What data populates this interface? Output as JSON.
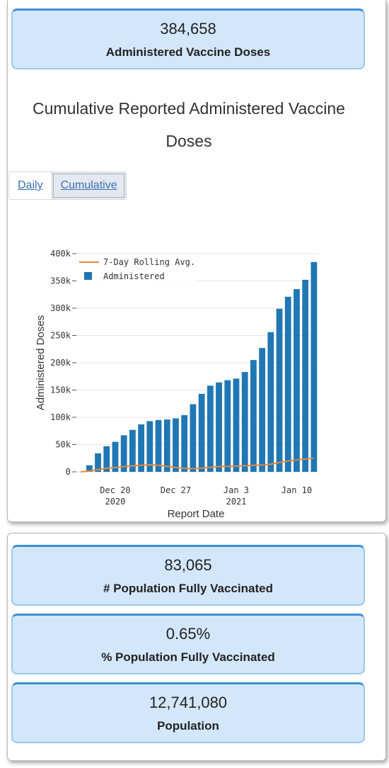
{
  "stats_top": {
    "doses_value": "384,658",
    "doses_label": "Administered Vaccine Doses"
  },
  "chart_title": "Cumulative Reported Administered Vaccine Doses",
  "tabs": [
    {
      "label": "Daily",
      "active": false
    },
    {
      "label": "Cumulative",
      "active": true
    }
  ],
  "stats_bottom": [
    {
      "value": "83,065",
      "label": "# Population Fully Vaccinated"
    },
    {
      "value": "0.65%",
      "label": "% Population Fully Vaccinated"
    },
    {
      "value": "12,741,080",
      "label": "Population"
    }
  ],
  "colors": {
    "bar": "#1f77b4",
    "line": "#e8873a",
    "stat_bg": "#d3e7fa",
    "stat_border": "#3b8fd6"
  },
  "chart_data": {
    "type": "bar",
    "xlabel": "Report Date",
    "ylabel": "Administered Doses",
    "ylim": [
      0,
      400000
    ],
    "yticks": [
      0,
      50000,
      100000,
      150000,
      200000,
      250000,
      300000,
      350000,
      400000
    ],
    "ytick_labels": [
      "0",
      "50k",
      "100k",
      "150k",
      "200k",
      "250k",
      "300k",
      "350k",
      "400k"
    ],
    "xtick_labels": [
      {
        "index": 4,
        "line1": "Dec 20",
        "line2": "2020"
      },
      {
        "index": 11,
        "line1": "Dec 27",
        "line2": ""
      },
      {
        "index": 18,
        "line1": "Jan 3",
        "line2": "2021"
      },
      {
        "index": 25,
        "line1": "Jan 10",
        "line2": ""
      }
    ],
    "legend": [
      "7-Day Rolling Avg.",
      "Administered"
    ],
    "legend_position": "top-left",
    "series": [
      {
        "name": "Administered",
        "kind": "bar",
        "values": [
          0,
          12000,
          34000,
          47000,
          55000,
          67000,
          77000,
          87000,
          93000,
          95000,
          96000,
          98000,
          104000,
          124000,
          143000,
          158000,
          164000,
          168000,
          171000,
          183000,
          205000,
          227000,
          256000,
          299000,
          321000,
          335000,
          352000,
          384658
        ]
      },
      {
        "name": "7-Day Rolling Avg.",
        "kind": "line",
        "values": [
          0,
          1500,
          4000,
          6500,
          8000,
          9500,
          11000,
          12000,
          13000,
          12000,
          10000,
          8000,
          6500,
          6000,
          7000,
          8500,
          9500,
          10000,
          10500,
          11000,
          12000,
          12500,
          14000,
          17000,
          20000,
          22000,
          23500,
          25000
        ]
      }
    ]
  }
}
